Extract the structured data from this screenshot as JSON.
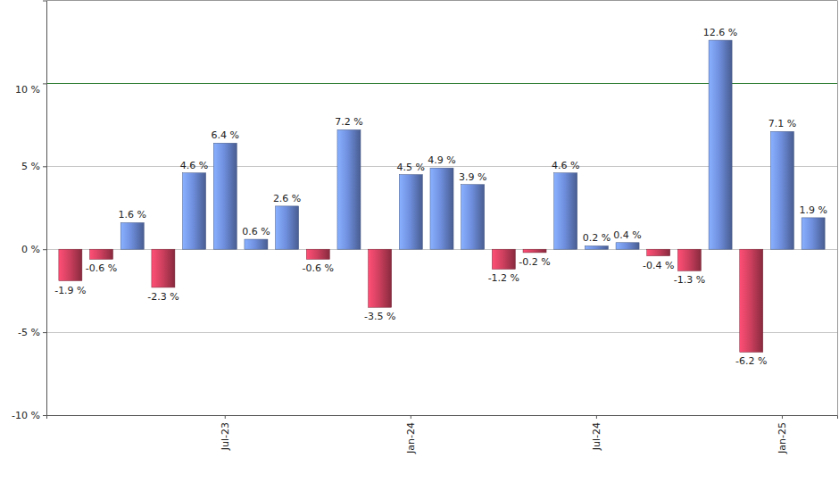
{
  "chart_data": {
    "type": "bar",
    "categories": [
      null,
      null,
      null,
      null,
      null,
      "Jul-23",
      null,
      null,
      null,
      null,
      null,
      "Jan-24",
      null,
      null,
      null,
      null,
      null,
      "Jul-24",
      null,
      null,
      null,
      null,
      null,
      "Jan-25",
      null
    ],
    "values": [
      -1.9,
      -0.6,
      1.6,
      -2.3,
      4.6,
      6.4,
      0.6,
      2.6,
      -0.6,
      7.2,
      -3.5,
      4.5,
      4.9,
      3.9,
      -1.2,
      -0.2,
      4.6,
      0.2,
      0.4,
      -0.4,
      -1.3,
      12.6,
      -6.2,
      7.1,
      1.9
    ],
    "value_labels": [
      "-1.9 %",
      "-0.6 %",
      "1.6 %",
      "-2.3 %",
      "4.6 %",
      "6.4 %",
      "0.6 %",
      "2.6 %",
      "-0.6 %",
      "7.2 %",
      "-3.5 %",
      "4.5 %",
      "4.9 %",
      "3.9 %",
      "-1.2 %",
      "-0.2 %",
      "4.6 %",
      "0.2 %",
      "0.4 %",
      "-0.4 %",
      "-1.3 %",
      "12.6 %",
      "-6.2 %",
      "7.1 %",
      "1.9 %"
    ],
    "colors": [
      "#d0405f",
      "#d0405f",
      "#6f8fde",
      "#d0405f",
      "#6f8fde",
      "#6f8fde",
      "#6f8fde",
      "#6f8fde",
      "#d0405f",
      "#6f8fde",
      "#d0405f",
      "#6f8fde",
      "#6f8fde",
      "#6f8fde",
      "#d0405f",
      "#d0405f",
      "#6f8fde",
      "#6f8fde",
      "#6f8fde",
      "#d0405f",
      "#d0405f",
      "#6f8fde",
      "#d0405f",
      "#6f8fde",
      "#6f8fde"
    ],
    "ylim": [
      -10,
      15
    ],
    "yticks": [
      {
        "value": -10,
        "label": "-10 %"
      },
      {
        "value": -5,
        "label": "-5 %"
      },
      {
        "value": 0,
        "label": "0 %"
      },
      {
        "value": 5,
        "label": "5 %"
      },
      {
        "value": 10,
        "label": "10 %"
      }
    ],
    "grid": true,
    "data_labels": true
  }
}
